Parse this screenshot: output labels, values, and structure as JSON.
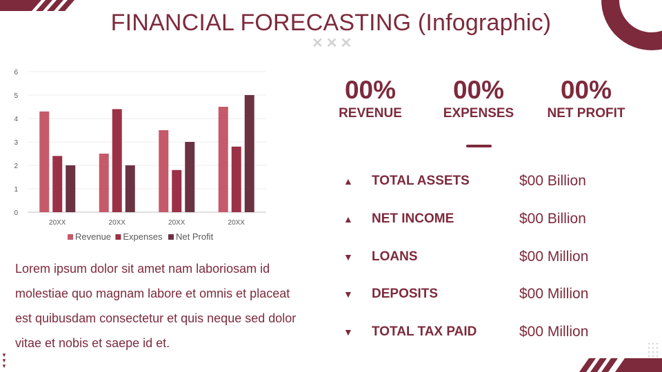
{
  "title": "FINANCIAL FORECASTING (Infographic)",
  "colors": {
    "primary": "#7d2a3c",
    "revenue": "#c55a6b",
    "expenses": "#9b3147",
    "net_profit": "#6b3342"
  },
  "chart_data": {
    "type": "bar",
    "categories": [
      "20XX",
      "20XX",
      "20XX",
      "20XX"
    ],
    "series": [
      {
        "name": "Revenue",
        "values": [
          4.3,
          2.5,
          3.5,
          4.5
        ]
      },
      {
        "name": "Expenses",
        "values": [
          2.4,
          4.4,
          1.8,
          2.8
        ]
      },
      {
        "name": "Net Profit",
        "values": [
          2,
          2,
          3,
          5
        ]
      }
    ],
    "ylim": [
      0,
      6
    ],
    "yticks": [
      "0",
      "1",
      "2",
      "3",
      "4",
      "5",
      "6"
    ],
    "grid": true,
    "legend_position": "bottom"
  },
  "body_text": "Lorem ipsum dolor sit amet nam laboriosam id molestiae quo magnam labore et omnis et placeat est quibusdam consectetur et quis neque sed dolor vitae et nobis et saepe id et.",
  "stats": [
    {
      "value": "00%",
      "label": "REVENUE"
    },
    {
      "value": "00%",
      "label": "EXPENSES"
    },
    {
      "value": "00%",
      "label": "NET PROFIT"
    }
  ],
  "metrics": [
    {
      "arrow": "▲",
      "direction": "up",
      "label": "TOTAL ASSETS",
      "amount": "$00 Billion"
    },
    {
      "arrow": "▲",
      "direction": "up",
      "label": "NET INCOME",
      "amount": "$00 Billion"
    },
    {
      "arrow": "▼",
      "direction": "down",
      "label": "LOANS",
      "amount": "$00 Million"
    },
    {
      "arrow": "▼",
      "direction": "down",
      "label": "DEPOSITS",
      "amount": "$00 Million"
    },
    {
      "arrow": "▼",
      "direction": "down",
      "label": "TOTAL TAX PAID",
      "amount": "$00 Million"
    }
  ]
}
